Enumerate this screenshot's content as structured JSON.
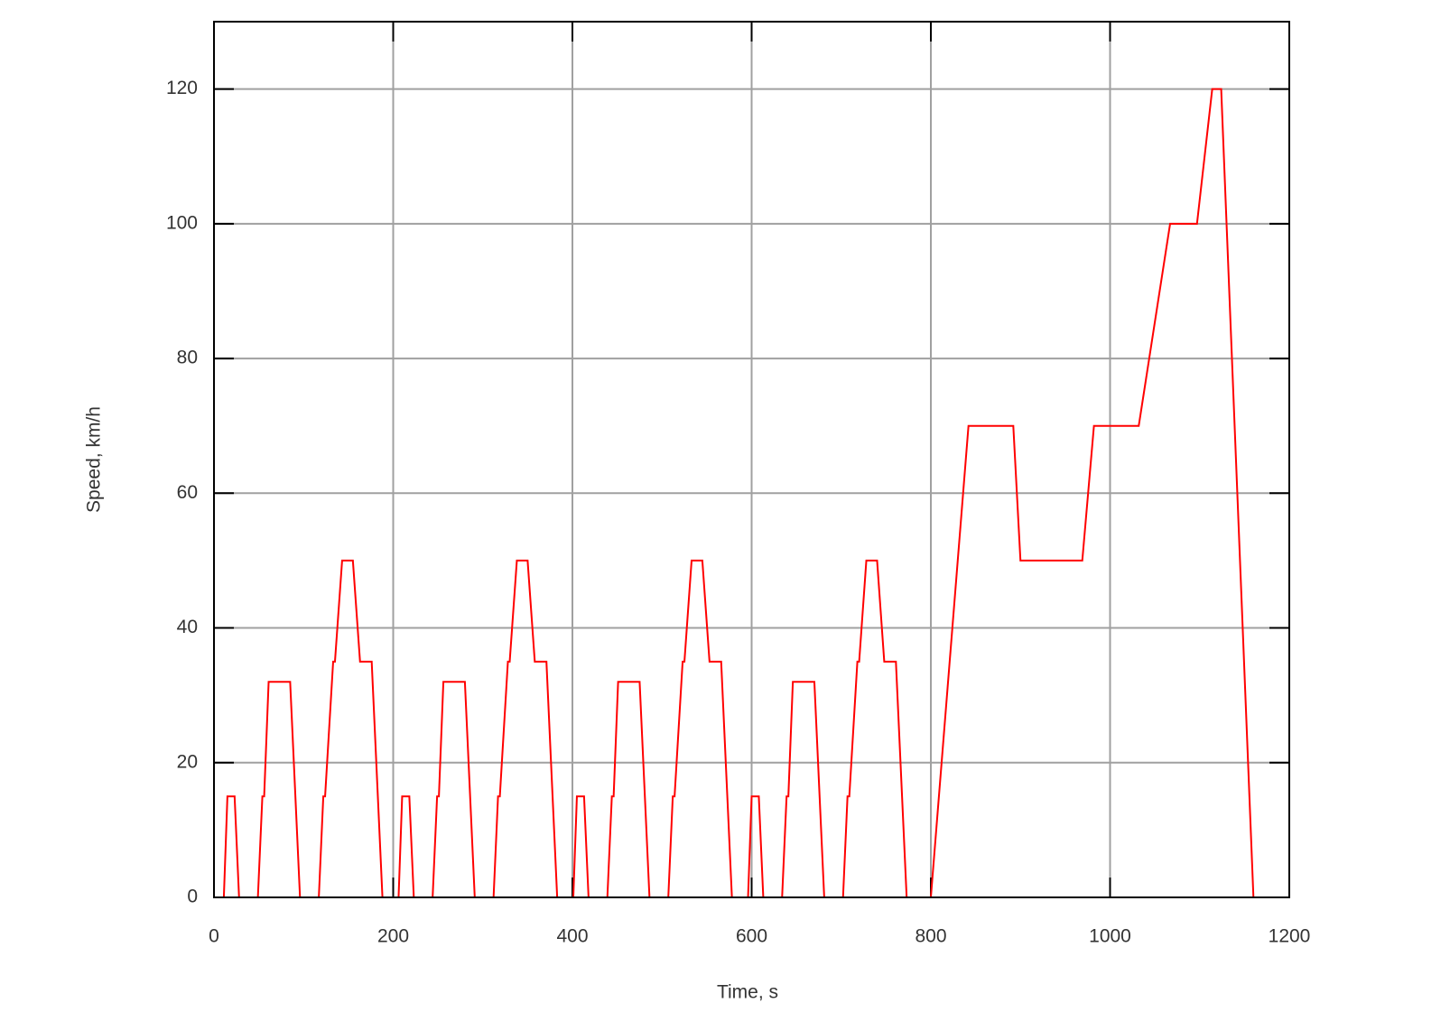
{
  "chart_data": {
    "type": "line",
    "xlabel": "Time, s",
    "ylabel": "Speed, km/h",
    "x": [
      0,
      11,
      15,
      23,
      28,
      49,
      54,
      56,
      61,
      85,
      96,
      117,
      122,
      124,
      133,
      135,
      143,
      155,
      163,
      176,
      188,
      195,
      206,
      210,
      218,
      223,
      244,
      249,
      251,
      256,
      280,
      291,
      312,
      317,
      319,
      328,
      330,
      338,
      350,
      358,
      371,
      383,
      390,
      401,
      405,
      413,
      418,
      439,
      444,
      446,
      451,
      475,
      486,
      507,
      512,
      514,
      523,
      525,
      533,
      545,
      553,
      566,
      578,
      585,
      596,
      600,
      608,
      613,
      634,
      639,
      641,
      646,
      670,
      681,
      702,
      707,
      709,
      718,
      720,
      728,
      740,
      748,
      761,
      773,
      780,
      800,
      842,
      892,
      900,
      969,
      982,
      1032,
      1067,
      1097,
      1114,
      1124,
      1160,
      1180
    ],
    "series": [
      {
        "name": "Speed",
        "color": "#ff0000",
        "values": [
          0,
          0,
          15,
          15,
          0,
          0,
          15,
          15,
          32,
          32,
          0,
          0,
          15,
          15,
          35,
          35,
          50,
          50,
          35,
          35,
          0,
          0,
          0,
          15,
          15,
          0,
          0,
          15,
          15,
          32,
          32,
          0,
          0,
          15,
          15,
          35,
          35,
          50,
          50,
          35,
          35,
          0,
          0,
          0,
          15,
          15,
          0,
          0,
          15,
          15,
          32,
          32,
          0,
          0,
          15,
          15,
          35,
          35,
          50,
          50,
          35,
          35,
          0,
          0,
          0,
          15,
          15,
          0,
          0,
          15,
          15,
          32,
          32,
          0,
          0,
          15,
          15,
          35,
          35,
          50,
          50,
          35,
          35,
          0,
          0,
          0,
          70,
          70,
          50,
          50,
          70,
          70,
          100,
          100,
          120,
          120,
          0,
          0
        ]
      }
    ],
    "xlim": [
      0,
      1200
    ],
    "xticks": [
      0,
      200,
      400,
      600,
      800,
      1000,
      1200
    ],
    "ylim": [
      0,
      130
    ],
    "yticks": [
      0,
      20,
      40,
      60,
      80,
      100,
      120
    ],
    "grid": true
  }
}
